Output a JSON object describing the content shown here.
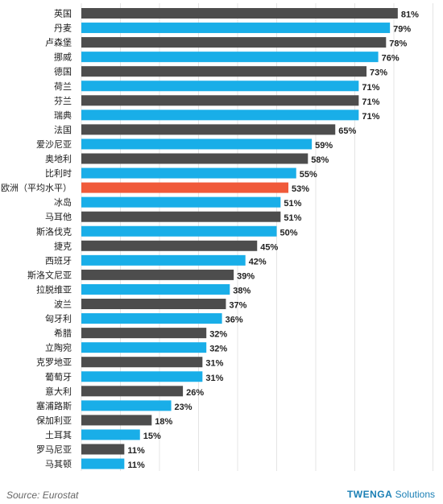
{
  "chart_data": {
    "type": "bar",
    "orientation": "horizontal",
    "title": "",
    "xlabel": "",
    "ylabel": "",
    "xlim": [
      0,
      100
    ],
    "grid": true,
    "legend": "none",
    "categories": [
      "英国",
      "丹麦",
      "卢森堡",
      "挪威",
      "德国",
      "荷兰",
      "芬兰",
      "瑞典",
      "法国",
      "爱沙尼亚",
      "奥地利",
      "比利时",
      "欧洲（平均水平）",
      "冰岛",
      "马耳他",
      "斯洛伐克",
      "捷克",
      "西班牙",
      "斯洛文尼亚",
      "拉脱维亚",
      "波兰",
      "匈牙利",
      "希腊",
      "立陶宛",
      "克罗地亚",
      "葡萄牙",
      "意大利",
      "塞浦路斯",
      "保加利亚",
      "土耳其",
      "罗马尼亚",
      "马其顿"
    ],
    "values": [
      81,
      79,
      78,
      76,
      73,
      71,
      71,
      71,
      65,
      59,
      58,
      55,
      53,
      51,
      51,
      50,
      45,
      42,
      39,
      38,
      37,
      36,
      32,
      32,
      31,
      31,
      26,
      23,
      18,
      15,
      11,
      11
    ],
    "value_labels": [
      "81%",
      "79%",
      "78%",
      "76%",
      "73%",
      "71%",
      "71%",
      "71%",
      "65%",
      "59%",
      "58%",
      "55%",
      "53%",
      "51%",
      "51%",
      "50%",
      "45%",
      "42%",
      "39%",
      "38%",
      "37%",
      "36%",
      "32%",
      "32%",
      "31%",
      "31%",
      "26%",
      "23%",
      "18%",
      "15%",
      "11%",
      "11%"
    ],
    "highlight_category": "欧洲（平均水平）",
    "colors": {
      "dark": "#4d4d4d",
      "blue": "#19aee8",
      "highlight": "#f05a3a",
      "grid": "#e4e4e4"
    }
  },
  "footer": {
    "source": "Source: Eurostat",
    "brand_name": "TWENGA",
    "brand_suffix": " Solutions"
  }
}
